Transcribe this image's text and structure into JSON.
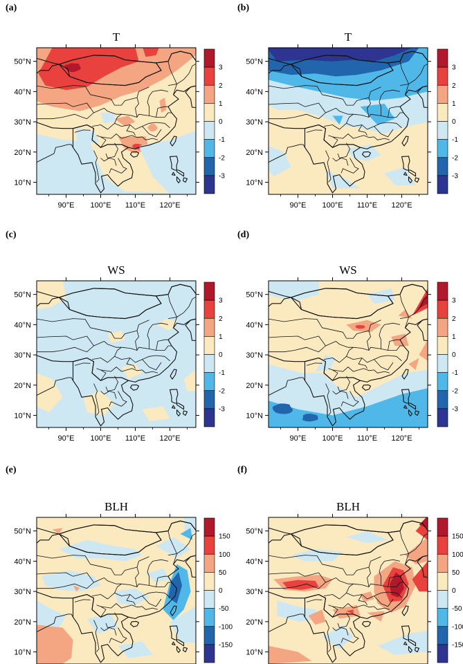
{
  "chart_data": [
    {
      "type": "heatmap",
      "panel": "(a)",
      "title": "T",
      "x_ticks": [
        "90°E",
        "100°E",
        "110°E",
        "120°E"
      ],
      "y_ticks": [
        "10°N",
        "20°N",
        "30°N",
        "40°N",
        "50°N"
      ],
      "colorbar_labels": [
        "3",
        "2",
        "1",
        "0",
        "-1",
        "-2",
        "-3"
      ],
      "colorbar_colors": [
        "#b2182b",
        "#e8413e",
        "#f4a582",
        "#fbe9c0",
        "#cde8f2",
        "#4fb8e8",
        "#2166ac",
        "#2d3590"
      ],
      "regions": [
        {
          "name": "northern band",
          "value": 2
        },
        {
          "name": "Mongolia core",
          "value": 3
        },
        {
          "name": "north-west China",
          "value": 1
        },
        {
          "name": "south China",
          "value": 1
        },
        {
          "name": "Bay of Bengal / South China Sea",
          "value": -1
        }
      ]
    },
    {
      "type": "heatmap",
      "panel": "(b)",
      "title": "T",
      "x_ticks": [
        "90°E",
        "100°E",
        "110°E",
        "120°E"
      ],
      "y_ticks": [
        "10°N",
        "20°N",
        "30°N",
        "40°N",
        "50°N"
      ],
      "colorbar_labels": [
        "3",
        "2",
        "1",
        "0",
        "-1",
        "-2",
        "-3"
      ],
      "colorbar_colors": [
        "#b2182b",
        "#e8413e",
        "#f4a582",
        "#fbe9c0",
        "#cde8f2",
        "#4fb8e8",
        "#2166ac",
        "#2d3590"
      ],
      "regions": [
        {
          "name": "Mongolia",
          "value": -3
        },
        {
          "name": "north China",
          "value": -2
        },
        {
          "name": "central China",
          "value": -1
        },
        {
          "name": "south-east Asia",
          "value": 0
        }
      ]
    },
    {
      "type": "heatmap",
      "panel": "(c)",
      "title": "WS",
      "x_ticks": [
        "90°E",
        "100°E",
        "110°E",
        "120°E"
      ],
      "y_ticks": [
        "10°N",
        "20°N",
        "30°N",
        "40°N",
        "50°N"
      ],
      "colorbar_labels": [
        "3",
        "2",
        "1",
        "0",
        "-1",
        "-2",
        "-3"
      ],
      "colorbar_colors": [
        "#b2182b",
        "#e8413e",
        "#f4a582",
        "#fbe9c0",
        "#cde8f2",
        "#4fb8e8",
        "#2166ac",
        "#2d3590"
      ],
      "regions": [
        {
          "name": "most of domain",
          "value": -1
        },
        {
          "name": "scattered patches",
          "value": 0
        }
      ]
    },
    {
      "type": "heatmap",
      "panel": "(d)",
      "title": "WS",
      "x_ticks": [
        "90°E",
        "100°E",
        "110°E",
        "120°E"
      ],
      "y_ticks": [
        "10°N",
        "20°N",
        "30°N",
        "40°N",
        "50°N"
      ],
      "colorbar_labels": [
        "3",
        "2",
        "1",
        "0",
        "-1",
        "-2",
        "-3"
      ],
      "colorbar_colors": [
        "#b2182b",
        "#e8413e",
        "#f4a582",
        "#fbe9c0",
        "#cde8f2",
        "#4fb8e8",
        "#2166ac",
        "#2d3590"
      ],
      "regions": [
        {
          "name": "southern oceans",
          "value": -2
        },
        {
          "name": "north China plain",
          "value": 1
        },
        {
          "name": "Japan",
          "value": 2
        },
        {
          "name": "inland",
          "value": 0
        }
      ]
    },
    {
      "type": "heatmap",
      "panel": "(e)",
      "title": "BLH",
      "x_ticks": [
        "90°E",
        "100°E",
        "110°E",
        "120°E"
      ],
      "y_ticks": [
        "10°N",
        "20°N",
        "30°N",
        "40°N",
        "50°N"
      ],
      "colorbar_labels": [
        "150",
        "100",
        "50",
        "0",
        "-50",
        "-100",
        "-150"
      ],
      "colorbar_colors": [
        "#b2182b",
        "#e8413e",
        "#f4a582",
        "#fbe9c0",
        "#cde8f2",
        "#4fb8e8",
        "#2166ac",
        "#2d3590"
      ],
      "regions": [
        {
          "name": "Bay of Bengal",
          "value": 150
        },
        {
          "name": "Yellow Sea / east China",
          "value": -100
        },
        {
          "name": "most of land",
          "value": 0
        }
      ]
    },
    {
      "type": "heatmap",
      "panel": "(f)",
      "title": "BLH",
      "x_ticks": [
        "90°E",
        "100°E",
        "110°E",
        "120°E"
      ],
      "y_ticks": [
        "10°N",
        "20°N",
        "30°N",
        "40°N",
        "50°N"
      ],
      "colorbar_labels": [
        "150",
        "100",
        "50",
        "0",
        "-50",
        "-100",
        "-150"
      ],
      "colorbar_colors": [
        "#b2182b",
        "#e8413e",
        "#f4a582",
        "#fbe9c0",
        "#cde8f2",
        "#4fb8e8",
        "#2166ac",
        "#2d3590"
      ],
      "regions": [
        {
          "name": "east China coast",
          "value": 150
        },
        {
          "name": "Tibetan plateau",
          "value": 100
        },
        {
          "name": "Japan",
          "value": 100
        },
        {
          "name": "scattered",
          "value": 0
        }
      ]
    }
  ]
}
